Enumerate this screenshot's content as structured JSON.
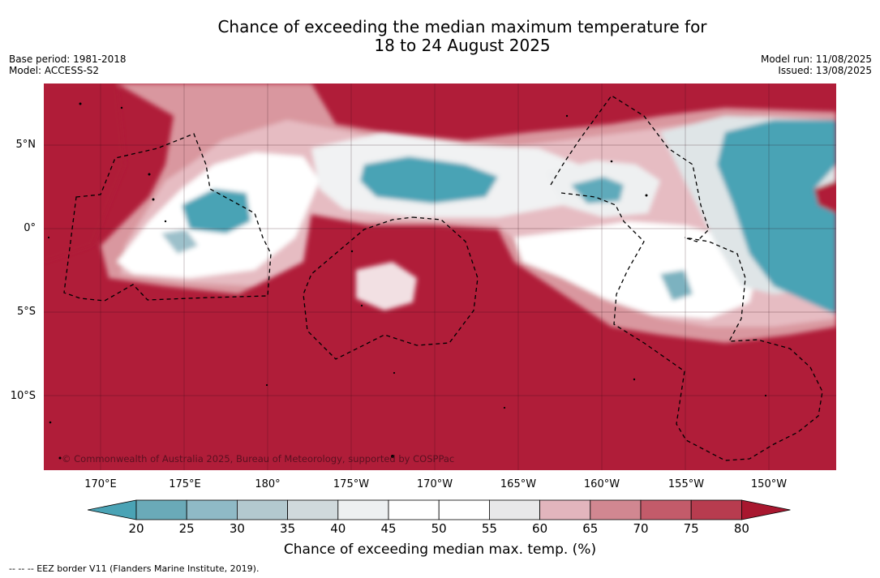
{
  "header": {
    "title_line1": "Chance of exceeding the median maximum temperature for",
    "title_line2": "18 to 24 August 2025",
    "base_period": "Base period: 1981-2018",
    "model": "Model: ACCESS-S2",
    "model_run": "Model run: 11/08/2025",
    "issued": "Issued: 13/08/2025"
  },
  "map": {
    "lat_labels": [
      "5°N",
      "0°",
      "5°S",
      "10°S"
    ],
    "lon_labels": [
      "170°E",
      "175°E",
      "180°",
      "175°W",
      "170°W",
      "165°W",
      "160°W",
      "155°W",
      "150°W"
    ],
    "copyright": "© Commonwealth of Australia 2025, Bureau of Meteorology, supported by COSPPac",
    "colors": {
      "background_high": "#b01d39",
      "low_teal": "#4aa3b5",
      "white": "#ffffff"
    }
  },
  "colorbar": {
    "ticks": [
      "20",
      "25",
      "30",
      "35",
      "40",
      "45",
      "50",
      "55",
      "60",
      "65",
      "70",
      "75",
      "80"
    ],
    "colors": [
      "#4aa3b5",
      "#6aaab8",
      "#8fbac6",
      "#b3c9cf",
      "#d0d9dc",
      "#edf0f1",
      "#ffffff",
      "#ffffff",
      "#e8e8e9",
      "#e2b5bd",
      "#d18791",
      "#c35b6a",
      "#b73c4f",
      "#a8172f"
    ],
    "label": "Chance of exceeding median max. temp. (%)"
  },
  "legend": {
    "eez": "-- -- -- EEZ border V11 (Flanders Marine Institute, 2019)."
  }
}
